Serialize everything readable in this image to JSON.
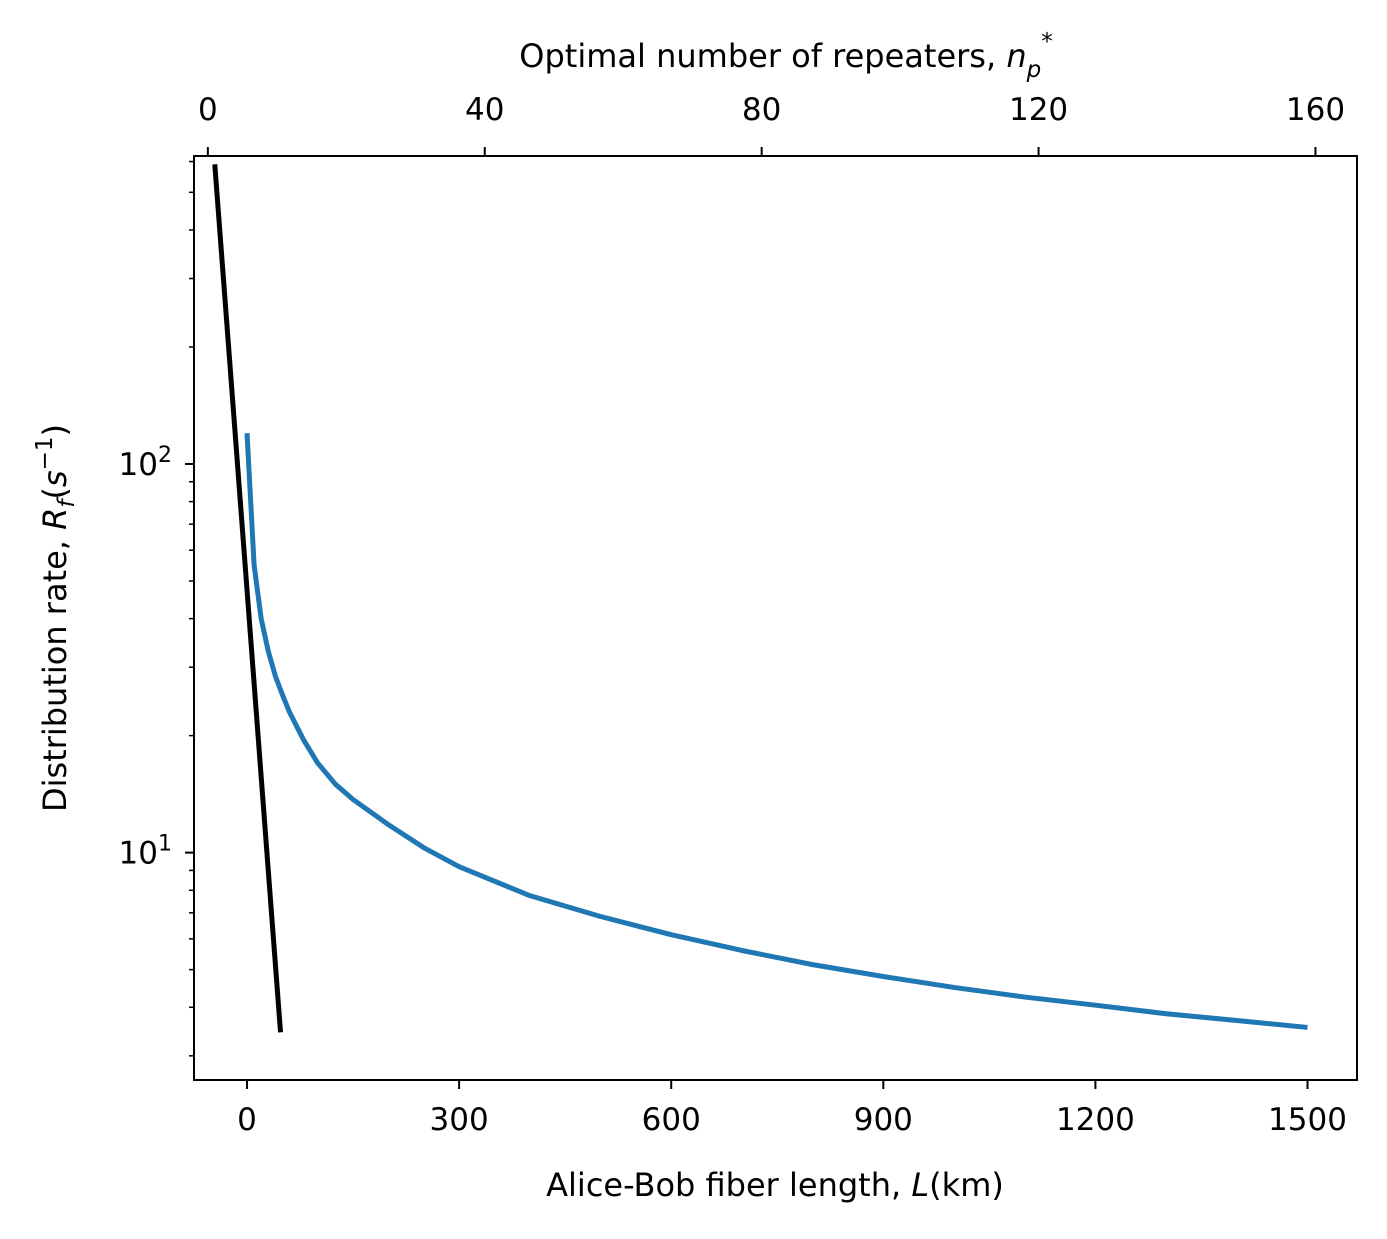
{
  "chart_data": {
    "type": "line",
    "xlabel": "Alice-Bob fiber length, L(km)",
    "ylabel": "Distribution rate, Rf(s−1)",
    "top_xlabel": "Optimal number of repeaters, n_p*",
    "yscale": "log",
    "xlim": [
      -75,
      1570
    ],
    "ylim": [
      2.6,
      620
    ],
    "top_xlim": [
      -2.0,
      166.0
    ],
    "x_ticks": [
      0,
      300,
      600,
      900,
      1200,
      1500
    ],
    "top_x_ticks": [
      0,
      40,
      80,
      120,
      160
    ],
    "y_major_ticks": [
      {
        "value": 10,
        "base": "10",
        "exp": "1"
      },
      {
        "value": 100,
        "base": "10",
        "exp": "2"
      }
    ],
    "y_minor_ticks": [
      3,
      4,
      5,
      6,
      7,
      8,
      9,
      20,
      30,
      40,
      50,
      60,
      70,
      80,
      90,
      200,
      300,
      400,
      500,
      600
    ],
    "grid": false,
    "series": [
      {
        "axis": "bottom",
        "color": "#1f77b4",
        "x": [
          0,
          10,
          20,
          30,
          40,
          50,
          60,
          80,
          100,
          125,
          150,
          200,
          250,
          300,
          400,
          500,
          600,
          700,
          800,
          900,
          1000,
          1100,
          1200,
          1300,
          1400,
          1500
        ],
        "y": [
          120,
          55,
          40,
          33,
          28.5,
          25.5,
          23,
          19.5,
          17,
          15,
          13.7,
          11.8,
          10.3,
          9.2,
          7.75,
          6.85,
          6.15,
          5.6,
          5.15,
          4.8,
          4.5,
          4.25,
          4.05,
          3.85,
          3.7,
          3.55
        ]
      },
      {
        "axis": "top",
        "color": "#000000",
        "x": [
          1,
          10.5
        ],
        "y": [
          590,
          3.45
        ]
      }
    ]
  }
}
